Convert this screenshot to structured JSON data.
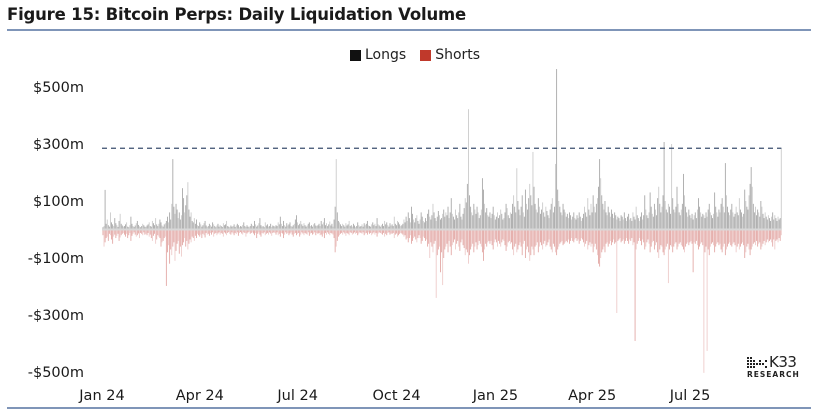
{
  "chart_data": {
    "type": "bar",
    "title": "Figure 15: Bitcoin Perps: Daily Liquidation Volume",
    "x_start": "2024-01-01",
    "x_frequency": "daily",
    "xlabel": "",
    "ylabel": "",
    "ylim": [
      -560,
      580
    ],
    "y_ticks": [
      500,
      300,
      100,
      -100,
      -300,
      -500
    ],
    "y_tick_labels": [
      "$500m",
      "$300m",
      "$100m",
      "-$100m",
      "-$300m",
      "-$500m"
    ],
    "x_ticks": [
      "2024-01-01",
      "2024-04-01",
      "2024-07-01",
      "2024-10-01",
      "2025-01-01",
      "2025-04-01",
      "2025-07-01"
    ],
    "x_tick_labels": [
      "Jan 24",
      "Apr 24",
      "Jul 24",
      "Oct 24",
      "Jan 25",
      "Apr 25",
      "Jul 25"
    ],
    "grid": false,
    "legend_position": "top-center",
    "reference_line": {
      "value": 285,
      "style": "dashed",
      "color": "#3b4f6e"
    },
    "series": [
      {
        "name": "Longs",
        "color": "#111111",
        "bar_color": "#a9a9a9",
        "values": [
          8,
          12,
          139,
          20,
          35,
          15,
          10,
          60,
          25,
          18,
          12,
          40,
          22,
          15,
          9,
          30,
          55,
          20,
          14,
          10,
          12,
          18,
          25,
          10,
          8,
          15,
          45,
          20,
          12,
          9,
          14,
          22,
          30,
          16,
          11,
          8,
          12,
          20,
          15,
          10,
          9,
          14,
          18,
          25,
          12,
          10,
          30,
          22,
          15,
          40,
          18,
          12,
          20,
          35,
          25,
          14,
          10,
          18,
          22,
          30,
          45,
          25,
          60,
          35,
          90,
          247,
          80,
          55,
          90,
          70,
          40,
          60,
          35,
          50,
          145,
          110,
          60,
          85,
          120,
          166,
          70,
          45,
          60,
          30,
          25,
          40,
          20,
          35,
          15,
          12,
          25,
          18,
          10,
          15,
          22,
          30,
          14,
          9,
          12,
          20,
          15,
          10,
          25,
          18,
          12,
          8,
          14,
          20,
          10,
          16,
          12,
          9,
          22,
          15,
          18,
          30,
          12,
          10,
          8,
          14,
          10,
          12,
          18,
          9,
          14,
          20,
          15,
          8,
          12,
          10,
          16,
          25,
          12,
          9,
          15,
          10,
          8,
          12,
          20,
          14,
          12,
          30,
          18,
          10,
          14,
          22,
          40,
          15,
          10,
          12,
          8,
          25,
          14,
          18,
          10,
          12,
          20,
          9,
          14,
          12,
          10,
          15,
          12,
          25,
          18,
          45,
          20,
          12,
          30,
          15,
          10,
          22,
          14,
          18,
          25,
          12,
          10,
          15,
          20,
          35,
          50,
          25,
          15,
          20,
          30,
          18,
          12,
          22,
          15,
          10,
          14,
          20,
          25,
          12,
          15,
          10,
          18,
          22,
          14,
          12,
          15,
          20,
          12,
          30,
          18,
          25,
          40,
          15,
          22,
          12,
          18,
          28,
          14,
          20,
          10,
          35,
          80,
          247,
          60,
          30,
          25,
          18,
          12,
          20,
          15,
          10,
          22,
          14,
          18,
          30,
          12,
          15,
          10,
          20,
          14,
          8,
          12,
          25,
          15,
          10,
          12,
          18,
          10,
          22,
          15,
          20,
          30,
          14,
          12,
          10,
          18,
          25,
          15,
          20,
          12,
          40,
          18,
          14,
          10,
          15,
          20,
          12,
          30,
          18,
          25,
          15,
          10,
          22,
          14,
          18,
          12,
          45,
          20,
          15,
          30,
          25,
          18,
          12,
          15,
          20,
          35,
          25,
          45,
          30,
          60,
          40,
          25,
          80,
          55,
          35,
          25,
          40,
          50,
          30,
          20,
          35,
          60,
          45,
          30,
          25,
          40,
          30,
          55,
          70,
          45,
          35,
          50,
          90,
          60,
          40,
          30,
          45,
          65,
          50,
          35,
          40,
          55,
          70,
          45,
          60,
          50,
          80,
          40,
          60,
          110,
          55,
          45,
          35,
          70,
          50,
          40,
          60,
          90,
          45,
          35,
          55,
          75,
          110,
          95,
          160,
          422,
          120,
          80,
          60,
          50,
          90,
          70,
          55,
          80,
          60,
          40,
          50,
          70,
          180,
          140,
          90,
          60,
          75,
          50,
          45,
          60,
          40,
          55,
          80,
          50,
          35,
          45,
          60,
          40,
          50,
          70,
          55,
          35,
          40,
          60,
          90,
          75,
          50,
          40,
          60,
          55,
          90,
          120,
          80,
          60,
          215,
          100,
          70,
          50,
          80,
          120,
          60,
          45,
          140,
          90,
          70,
          110,
          160,
          120,
          85,
          272,
          150,
          90,
          70,
          60,
          110,
          80,
          55,
          70,
          95,
          60,
          45,
          80,
          65,
          50,
          40,
          70,
          90,
          110,
          60,
          80,
          230,
          563,
          140,
          100,
          80,
          60,
          50,
          90,
          70,
          60,
          45,
          55,
          40,
          60,
          50,
          35,
          45,
          60,
          40,
          35,
          50,
          40,
          60,
          45,
          30,
          40,
          55,
          80,
          60,
          45,
          110,
          70,
          50,
          90,
          60,
          120,
          80,
          60,
          90,
          110,
          150,
          247,
          180,
          120,
          90,
          70,
          100,
          60,
          50,
          80,
          60,
          45,
          70,
          55,
          40,
          60,
          50,
          35,
          45,
          40,
          30,
          50,
          45,
          35,
          60,
          40,
          30,
          45,
          55,
          35,
          40,
          30,
          60,
          45,
          35,
          80,
          50,
          40,
          30,
          45,
          60,
          35,
          50,
          120,
          70,
          50,
          40,
          60,
          130,
          80,
          55,
          45,
          90,
          70,
          50,
          110,
          150,
          90,
          60,
          80,
          120,
          307,
          100,
          70,
          60,
          90,
          80,
          55,
          300,
          110,
          70,
          60,
          80,
          150,
          90,
          60,
          50,
          70,
          90,
          195,
          120,
          80,
          60,
          45,
          70,
          50,
          40,
          55,
          35,
          50,
          60,
          40,
          70,
          110,
          80,
          60,
          45,
          55,
          50,
          40,
          60,
          45,
          70,
          90,
          60,
          50,
          40,
          55,
          130,
          80,
          60,
          45,
          70,
          60,
          90,
          110,
          80,
          60,
          233,
          120,
          80,
          60,
          50,
          70,
          90,
          60,
          45,
          55,
          80,
          60,
          50,
          110,
          70,
          60,
          45,
          55,
          140,
          100,
          80,
          70,
          120,
          160,
          219,
          150,
          90,
          60,
          80,
          50,
          70,
          60,
          45,
          100,
          80,
          55,
          40,
          60,
          45,
          35,
          50,
          40,
          30,
          45,
          60,
          35,
          50,
          40,
          30,
          45,
          35,
          40,
          285
        ]
      },
      {
        "name": "Shorts",
        "color": "#c0392b",
        "bar_color": "#e3a9a6",
        "values": [
          -20,
          -60,
          -45,
          -30,
          -25,
          -40,
          -15,
          -20,
          -35,
          -50,
          -25,
          -18,
          -30,
          -22,
          -15,
          -40,
          -28,
          -20,
          -15,
          -12,
          -18,
          -25,
          -15,
          -30,
          -20,
          -12,
          -40,
          -22,
          -15,
          -10,
          -18,
          -25,
          -20,
          -14,
          -30,
          -12,
          -15,
          -20,
          -10,
          -18,
          -15,
          -20,
          -12,
          -25,
          -18,
          -30,
          -40,
          -22,
          -15,
          -50,
          -35,
          -20,
          -25,
          -30,
          -60,
          -45,
          -40,
          -30,
          -25,
          -198,
          -80,
          -55,
          -120,
          -70,
          -90,
          -60,
          -45,
          -110,
          -75,
          -50,
          -40,
          -85,
          -60,
          -95,
          -55,
          -45,
          -30,
          -60,
          -40,
          -70,
          -50,
          -35,
          -45,
          -25,
          -30,
          -40,
          -22,
          -30,
          -15,
          -20,
          -25,
          -18,
          -30,
          -15,
          -20,
          -28,
          -12,
          -18,
          -15,
          -22,
          -12,
          -18,
          -10,
          -25,
          -15,
          -12,
          -20,
          -14,
          -10,
          -18,
          -12,
          -15,
          -25,
          -10,
          -14,
          -20,
          -12,
          -9,
          -15,
          -18,
          -10,
          -14,
          -20,
          -12,
          -16,
          -10,
          -22,
          -12,
          -9,
          -14,
          -18,
          -10,
          -12,
          -25,
          -14,
          -10,
          -8,
          -15,
          -12,
          -10,
          -14,
          -20,
          -12,
          -30,
          -15,
          -10,
          -18,
          -25,
          -12,
          -14,
          -10,
          -20,
          -15,
          -12,
          -18,
          -10,
          -14,
          -22,
          -12,
          -10,
          -12,
          -18,
          -10,
          -20,
          -15,
          -25,
          -12,
          -14,
          -30,
          -18,
          -10,
          -15,
          -12,
          -20,
          -14,
          -10,
          -18,
          -25,
          -15,
          -12,
          -20,
          -15,
          -12,
          -25,
          -18,
          -10,
          -14,
          -20,
          -12,
          -15,
          -18,
          -10,
          -22,
          -14,
          -12,
          -18,
          -15,
          -10,
          -20,
          -12,
          -15,
          -12,
          -20,
          -18,
          -25,
          -14,
          -30,
          -12,
          -18,
          -10,
          -15,
          -20,
          -12,
          -14,
          -18,
          -30,
          -80,
          -60,
          -40,
          -25,
          -20,
          -15,
          -12,
          -18,
          -10,
          -14,
          -22,
          -12,
          -15,
          -20,
          -10,
          -12,
          -18,
          -14,
          -10,
          -15,
          -12,
          -20,
          -14,
          -10,
          -12,
          -15,
          -10,
          -20,
          -14,
          -12,
          -18,
          -10,
          -15,
          -12,
          -20,
          -14,
          -10,
          -18,
          -12,
          -25,
          -14,
          -10,
          -12,
          -15,
          -18,
          -12,
          -25,
          -15,
          -20,
          -12,
          -10,
          -18,
          -14,
          -15,
          -12,
          -30,
          -18,
          -14,
          -25,
          -20,
          -15,
          -12,
          -14,
          -18,
          -25,
          -20,
          -35,
          -30,
          -45,
          -30,
          -20,
          -50,
          -40,
          -30,
          -25,
          -35,
          -45,
          -30,
          -20,
          -30,
          -50,
          -40,
          -25,
          -30,
          -40,
          -35,
          -60,
          -50,
          -100,
          -45,
          -60,
          -80,
          -50,
          -40,
          -240,
          -90,
          -70,
          -60,
          -150,
          -80,
          -195,
          -100,
          -70,
          -60,
          -50,
          -80,
          -40,
          -60,
          -90,
          -55,
          -45,
          -35,
          -70,
          -50,
          -40,
          -60,
          -75,
          -45,
          -35,
          -55,
          -65,
          -90,
          -70,
          -80,
          -120,
          -90,
          -70,
          -60,
          -50,
          -80,
          -60,
          -45,
          -70,
          -55,
          -40,
          -50,
          -60,
          -80,
          -110,
          -70,
          -50,
          -60,
          -45,
          -40,
          -50,
          -40,
          -55,
          -70,
          -45,
          -35,
          -45,
          -60,
          -40,
          -50,
          -60,
          -45,
          -35,
          -40,
          -55,
          -75,
          -60,
          -45,
          -40,
          -50,
          -45,
          -70,
          -90,
          -60,
          -50,
          -80,
          -70,
          -55,
          -45,
          -60,
          -90,
          -50,
          -40,
          -100,
          -70,
          -60,
          -80,
          -110,
          -90,
          -60,
          -70,
          -90,
          -60,
          -55,
          -45,
          -80,
          -60,
          -45,
          -55,
          -70,
          -50,
          -40,
          -60,
          -55,
          -45,
          -35,
          -60,
          -70,
          -80,
          -50,
          -60,
          -80,
          -90,
          -70,
          -60,
          -50,
          -45,
          -40,
          -55,
          -50,
          -45,
          -40,
          -45,
          -35,
          -50,
          -40,
          -30,
          -40,
          -45,
          -35,
          -30,
          -40,
          -35,
          -50,
          -40,
          -30,
          -35,
          -45,
          -60,
          -50,
          -40,
          -70,
          -55,
          -45,
          -60,
          -50,
          -80,
          -60,
          -50,
          -70,
          -90,
          -120,
          -130,
          -100,
          -80,
          -70,
          -60,
          -80,
          -50,
          -45,
          -60,
          -50,
          -40,
          -55,
          -45,
          -35,
          -50,
          -45,
          -293,
          -40,
          -35,
          -30,
          -45,
          -40,
          -35,
          -50,
          -40,
          -30,
          -40,
          -50,
          -35,
          -40,
          -30,
          -55,
          -45,
          -391,
          -70,
          -50,
          -40,
          -30,
          -40,
          -55,
          -35,
          -45,
          -70,
          -60,
          -45,
          -35,
          -50,
          -80,
          -60,
          -45,
          -40,
          -70,
          -55,
          -45,
          -80,
          -100,
          -70,
          -55,
          -60,
          -80,
          -90,
          -70,
          -60,
          -50,
          -188,
          -70,
          -55,
          -60,
          -80,
          -60,
          -50,
          -45,
          -70,
          -60,
          -50,
          -45,
          -55,
          -60,
          -70,
          -80,
          -60,
          -50,
          -45,
          -55,
          -45,
          -40,
          -50,
          -150,
          -45,
          -50,
          -40,
          -55,
          -70,
          -60,
          -50,
          -45,
          -55,
          -503,
          -80,
          -60,
          -426,
          -70,
          -90,
          -60,
          -50,
          -45,
          -55,
          -80,
          -60,
          -50,
          -45,
          -55,
          -50,
          -70,
          -80,
          -60,
          -50,
          -90,
          -70,
          -60,
          -50,
          -45,
          -55,
          -60,
          -50,
          -45,
          -55,
          -80,
          -60,
          -50,
          -70,
          -60,
          -50,
          -45,
          -55,
          -100,
          -80,
          -60,
          -50,
          -70,
          -90,
          -70,
          -60,
          -50,
          -45,
          -55,
          -40,
          -60,
          -50,
          -45,
          -70,
          -60,
          -50,
          -40,
          -55,
          -45,
          -35,
          -45,
          -40,
          -35,
          -45,
          -60,
          -35,
          -70,
          -40,
          -35,
          -45,
          -30,
          -40,
          -20
        ]
      }
    ]
  },
  "legend": {
    "longs": "Longs",
    "shorts": "Shorts"
  },
  "logo": {
    "brand": "K33",
    "sub": "RESEARCH"
  }
}
